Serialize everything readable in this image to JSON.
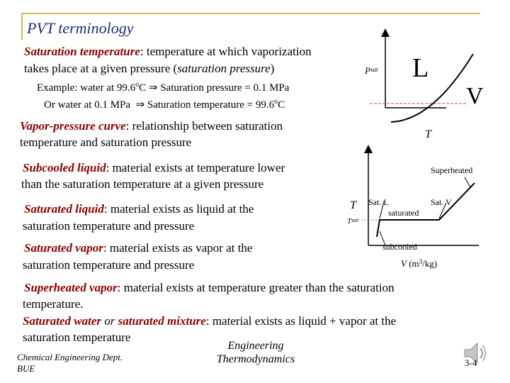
{
  "title": "PVT terminology",
  "saturation_temperature": {
    "term": "Saturation temperature",
    "line1": ": temperature at which vaporization",
    "line2_a": "takes place at a given pressure (",
    "line2_b": "saturation pressure",
    "line2_c": ")"
  },
  "examples": {
    "ex1_a": "Example: water at 99.6",
    "ex1_sup": "o",
    "ex1_b": "C",
    "ex1_c": "Saturation pressure = 0.1 MPa",
    "ex2_a": "Or  water at 0.1 MPa",
    "ex2_c": "Saturation temperature = 99.6",
    "ex2_sup": "o",
    "ex2_d": "C"
  },
  "vapor_pressure_curve": {
    "term": "Vapor-pressure curve",
    "line1": ": relationship between saturation",
    "line2": "temperature and saturation pressure"
  },
  "subcooled_liquid": {
    "term": "Subcooled liquid",
    "line1": ": material exists at temperature lower",
    "line2": "than the saturation temperature at a given pressure"
  },
  "saturated_liquid": {
    "term": "Saturated liquid",
    "line1": ": material exists as liquid at the",
    "line2": "saturation temperature and pressure"
  },
  "saturated_vapor": {
    "term": "Saturated vapor",
    "line1": ": material exists as vapor at the",
    "line2": "saturation temperature and pressure"
  },
  "superheated_vapor": {
    "term": "Superheated vapor",
    "line1": ": material exists at temperature greater than the saturation",
    "line2": "temperature."
  },
  "saturated_water": {
    "term1": "Saturated water",
    "or": " or ",
    "term2": "saturated mixture",
    "line1": ": material exists as liquid + vapor at the",
    "line2": "saturation temperature"
  },
  "pt_diagram": {
    "p_label": "P",
    "p_sub": "sat",
    "t_label": "T",
    "liquid_label": "L",
    "vapor_label": "V"
  },
  "tv_diagram": {
    "t_label": "T",
    "tsat_label": "T",
    "tsat_sub": "sat",
    "superheated": "Superheated",
    "sat_l": "Sat. L",
    "sat_v": "Sat. V",
    "saturated": "saturated",
    "subcooled": "subcooled",
    "v_label": "V",
    "v_unit_a": " (m",
    "v_unit_sup": "3",
    "v_unit_b": "/kg)"
  },
  "footer": {
    "dept_line1": "Chemical Engineering Dept.",
    "dept_line2": "BUE",
    "course_line1": "Engineering",
    "course_line2": "Thermodynamics",
    "page": "3-4"
  },
  "icons": {
    "speaker": "speaker-icon"
  }
}
